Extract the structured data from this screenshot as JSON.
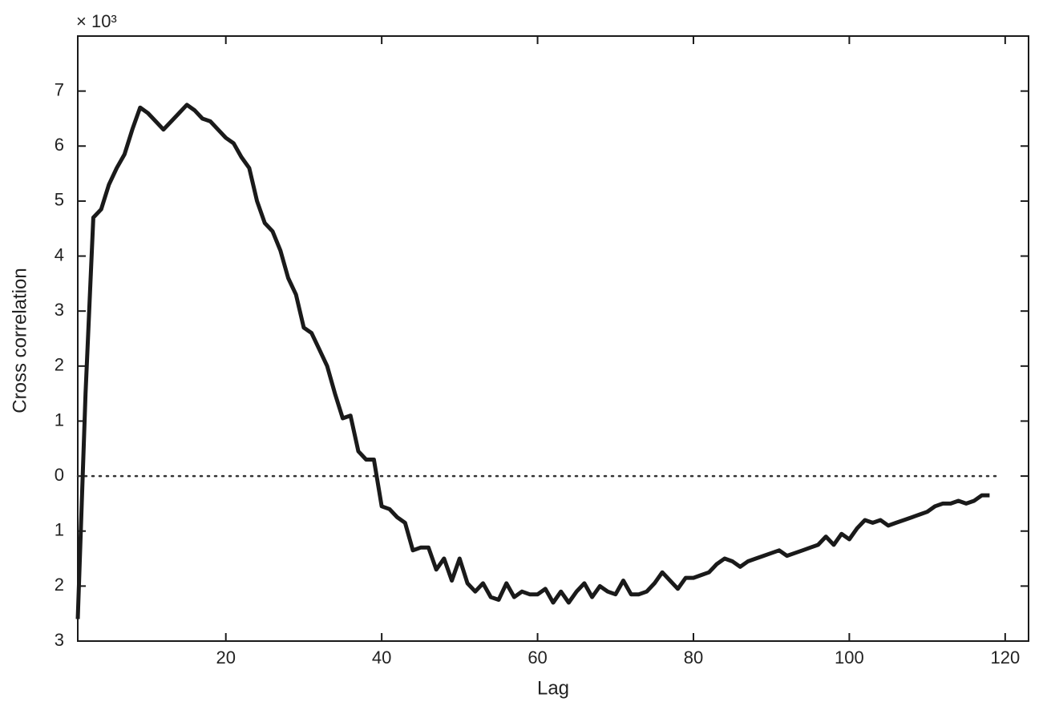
{
  "chart_data": {
    "type": "line",
    "x_label": "Lag",
    "y_label": "Cross correlation",
    "y_multiplier": "× 10³",
    "x": [
      1,
      2,
      3,
      4,
      5,
      6,
      7,
      8,
      9,
      10,
      11,
      12,
      13,
      14,
      15,
      16,
      17,
      18,
      19,
      20,
      21,
      22,
      23,
      24,
      25,
      26,
      27,
      28,
      29,
      30,
      31,
      32,
      33,
      34,
      35,
      36,
      37,
      38,
      39,
      40,
      41,
      42,
      43,
      44,
      45,
      46,
      47,
      48,
      49,
      50,
      51,
      52,
      53,
      54,
      55,
      56,
      57,
      58,
      59,
      60,
      61,
      62,
      63,
      64,
      65,
      66,
      67,
      68,
      69,
      70,
      71,
      72,
      73,
      74,
      75,
      76,
      77,
      78,
      79,
      80,
      81,
      82,
      83,
      84,
      85,
      86,
      87,
      88,
      89,
      90,
      91,
      92,
      93,
      94,
      95,
      96,
      97,
      98,
      99,
      100,
      101,
      102,
      103,
      104,
      105,
      106,
      107,
      108,
      109,
      110,
      111,
      112,
      113,
      114,
      115,
      116,
      117,
      118
    ],
    "series": [
      {
        "color": "#1a1a1a",
        "values": [
          -2.6,
          1.5,
          4.7,
          4.85,
          5.3,
          5.6,
          5.85,
          6.3,
          6.7,
          6.6,
          6.45,
          6.3,
          6.45,
          6.6,
          6.75,
          6.65,
          6.5,
          6.45,
          6.3,
          6.15,
          6.05,
          5.8,
          5.6,
          5.0,
          4.6,
          4.45,
          4.1,
          3.6,
          3.3,
          2.7,
          2.6,
          2.3,
          2.0,
          1.5,
          1.05,
          1.1,
          0.45,
          0.3,
          0.3,
          -0.55,
          -0.6,
          -0.75,
          -0.85,
          -1.35,
          -1.3,
          -1.3,
          -1.7,
          -1.5,
          -1.9,
          -1.5,
          -1.95,
          -2.1,
          -1.95,
          -2.2,
          -2.25,
          -1.95,
          -2.2,
          -2.1,
          -2.15,
          -2.15,
          -2.05,
          -2.3,
          -2.1,
          -2.3,
          -2.1,
          -1.95,
          -2.2,
          -2.0,
          -2.1,
          -2.15,
          -1.9,
          -2.15,
          -2.15,
          -2.1,
          -1.95,
          -1.75,
          -1.9,
          -2.05,
          -1.85,
          -1.85,
          -1.8,
          -1.75,
          -1.6,
          -1.5,
          -1.55,
          -1.65,
          -1.55,
          -1.5,
          -1.45,
          -1.4,
          -1.35,
          -1.45,
          -1.4,
          -1.35,
          -1.3,
          -1.25,
          -1.1,
          -1.25,
          -1.05,
          -1.15,
          -0.95,
          -0.8,
          -0.85,
          -0.8,
          -0.9,
          -0.85,
          -0.8,
          -0.75,
          -0.7,
          -0.65,
          -0.55,
          -0.5,
          -0.5,
          -0.45,
          -0.5,
          -0.45,
          -0.35,
          -0.35
        ]
      }
    ],
    "reference_line": 0,
    "xlim": [
      1,
      123
    ],
    "ylim": [
      -3,
      8
    ],
    "xticks": [
      20,
      40,
      60,
      80,
      100,
      120
    ],
    "yticks": [
      {
        "value": -3,
        "label": "3"
      },
      {
        "value": -2,
        "label": "2"
      },
      {
        "value": -1,
        "label": "1"
      },
      0,
      1,
      2,
      3,
      4,
      5,
      6,
      7
    ],
    "grid": false
  }
}
